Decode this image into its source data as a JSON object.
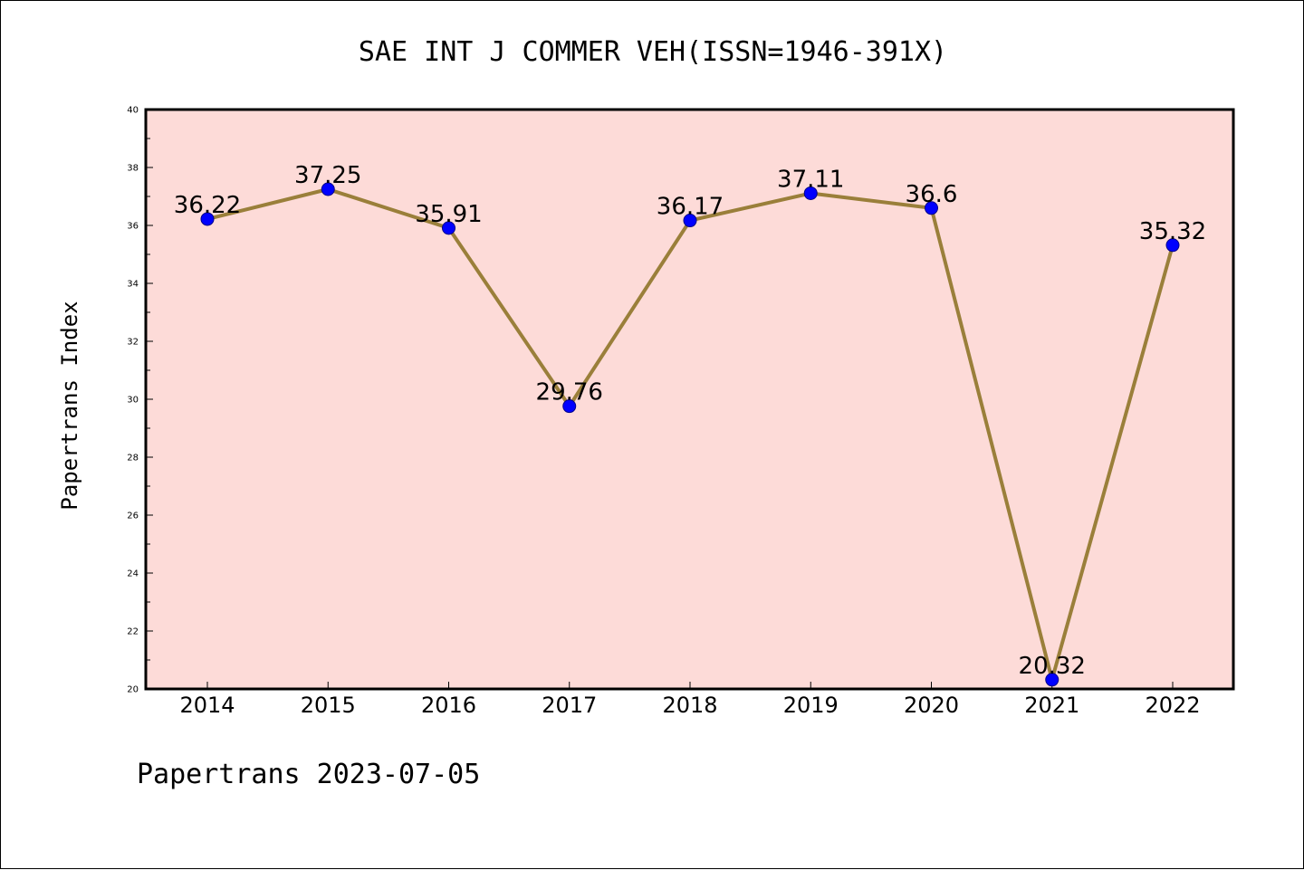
{
  "chart_data": {
    "type": "line",
    "title": "SAE INT J COMMER VEH(ISSN=1946-391X)",
    "xlabel": "",
    "ylabel": "Papertrans Index",
    "categories": [
      "2014",
      "2015",
      "2016",
      "2017",
      "2018",
      "2019",
      "2020",
      "2021",
      "2022"
    ],
    "values": [
      36.22,
      37.25,
      35.91,
      29.76,
      36.17,
      37.11,
      36.6,
      20.32,
      35.32
    ],
    "data_labels": [
      "36.22",
      "37.25",
      "35.91",
      "29.76",
      "36.17",
      "37.11",
      "36.6",
      "20.32",
      "35.32"
    ],
    "ylim": [
      20,
      40
    ],
    "yticks": [
      20,
      22,
      24,
      26,
      28,
      30,
      32,
      34,
      36,
      38,
      40
    ],
    "grid": false,
    "legend": "none",
    "colors": {
      "plot_background": "#fddbd8",
      "line": "#9a7f3a",
      "marker": "#0000ff",
      "axes": "#000000"
    }
  },
  "footer": "Papertrans 2023-07-05"
}
